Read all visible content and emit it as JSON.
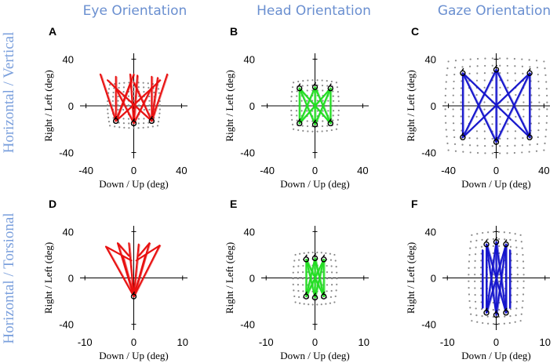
{
  "figure": {
    "column_titles": [
      "Eye Orientation",
      "Head Orientation",
      "Gaze Orientation"
    ],
    "row_titles": [
      "Horizontal / Vertical",
      "Horizontal / Torsional"
    ]
  },
  "colors": {
    "eye": "#e81010",
    "head": "#22dd22",
    "gaze": "#1515cc",
    "titles": "#7a9fdc",
    "grid_dots": "#8a8a8a"
  },
  "chart_data": [
    {
      "panel": "A",
      "type": "line",
      "title": "Eye Orientation",
      "row": "Horizontal / Vertical",
      "xlabel": "Down / Up (deg)",
      "ylabel": "Right / Left (deg)",
      "xlim": [
        -45,
        45
      ],
      "ylim": [
        -45,
        45
      ],
      "xticks": [
        -40,
        0,
        40
      ],
      "yticks": [
        40,
        0,
        -40
      ],
      "color": "eye",
      "grid": {
        "x": [
          -20,
          20
        ],
        "y": [
          -17,
          18
        ],
        "nx": 11,
        "ny": 11,
        "bulge": 3
      },
      "targets": [
        [
          -15,
          -13
        ],
        [
          0,
          -15
        ],
        [
          15,
          -13
        ]
      ],
      "traces": [
        {
          "from": [
            -15,
            -13
          ],
          "to": [
            -28,
            27
          ]
        },
        {
          "from": [
            -15,
            -13
          ],
          "to": [
            -15,
            25
          ]
        },
        {
          "from": [
            -15,
            -13
          ],
          "to": [
            0,
            27
          ]
        },
        {
          "from": [
            -15,
            -13
          ],
          "to": [
            15,
            15
          ]
        },
        {
          "from": [
            -15,
            -13
          ],
          "to": [
            -2,
            22
          ]
        },
        {
          "from": [
            0,
            -15
          ],
          "to": [
            -15,
            15
          ]
        },
        {
          "from": [
            0,
            -15
          ],
          "to": [
            15,
            16
          ]
        },
        {
          "from": [
            0,
            -15
          ],
          "to": [
            -3,
            27
          ]
        },
        {
          "from": [
            0,
            -15
          ],
          "to": [
            3,
            26
          ]
        },
        {
          "from": [
            15,
            -13
          ],
          "to": [
            28,
            27
          ]
        },
        {
          "from": [
            15,
            -13
          ],
          "to": [
            15,
            25
          ]
        },
        {
          "from": [
            15,
            -13
          ],
          "to": [
            0,
            20
          ]
        },
        {
          "from": [
            15,
            -13
          ],
          "to": [
            -15,
            15
          ]
        },
        {
          "from": [
            15,
            -13
          ],
          "to": [
            20,
            24
          ]
        },
        {
          "from": [
            -15,
            15
          ],
          "to": [
            -22,
            22
          ]
        },
        {
          "from": [
            15,
            15
          ],
          "to": [
            22,
            22
          ]
        }
      ]
    },
    {
      "panel": "B",
      "type": "line",
      "title": "Head Orientation",
      "row": "Horizontal / Vertical",
      "xlabel": "Down / Up (deg)",
      "ylabel": "Right / Left (deg)",
      "xlim": [
        -45,
        45
      ],
      "ylim": [
        -45,
        45
      ],
      "xticks": [
        -40,
        0,
        40
      ],
      "yticks": [
        40,
        0,
        -40
      ],
      "color": "head",
      "grid": {
        "x": [
          -18,
          18
        ],
        "y": [
          -20,
          20
        ],
        "nx": 10,
        "ny": 11,
        "bulge": 3
      },
      "targets": [
        [
          -13,
          -15
        ],
        [
          0,
          -16
        ],
        [
          13,
          -15
        ],
        [
          -13,
          15
        ],
        [
          0,
          16
        ],
        [
          13,
          15
        ]
      ],
      "traces": [
        {
          "from": [
            -13,
            -15
          ],
          "to": [
            -13,
            15
          ]
        },
        {
          "from": [
            -13,
            -15
          ],
          "to": [
            0,
            16
          ]
        },
        {
          "from": [
            -13,
            -15
          ],
          "to": [
            13,
            15
          ]
        },
        {
          "from": [
            0,
            -16
          ],
          "to": [
            -13,
            15
          ]
        },
        {
          "from": [
            0,
            -16
          ],
          "to": [
            0,
            16
          ]
        },
        {
          "from": [
            0,
            -16
          ],
          "to": [
            13,
            15
          ]
        },
        {
          "from": [
            13,
            -15
          ],
          "to": [
            -13,
            15
          ]
        },
        {
          "from": [
            13,
            -15
          ],
          "to": [
            0,
            16
          ]
        },
        {
          "from": [
            13,
            -15
          ],
          "to": [
            13,
            15
          ]
        }
      ]
    },
    {
      "panel": "C",
      "type": "line",
      "title": "Gaze Orientation",
      "row": "Horizontal / Vertical",
      "xlabel": "Down / Up (deg)",
      "ylabel": "Right / Left (deg)",
      "xlim": [
        -45,
        45
      ],
      "ylim": [
        -45,
        45
      ],
      "xticks": [
        -40,
        0,
        40
      ],
      "yticks": [
        40,
        0,
        -40
      ],
      "color": "gaze",
      "grid": {
        "x": [
          -40,
          40
        ],
        "y": [
          -38,
          38
        ],
        "nx": 14,
        "ny": 14,
        "bulge": 4
      },
      "targets": [
        [
          -28,
          -27
        ],
        [
          0,
          -31
        ],
        [
          28,
          -27
        ],
        [
          -28,
          28
        ],
        [
          0,
          31
        ],
        [
          28,
          28
        ]
      ],
      "traces": [
        {
          "from": [
            -28,
            -27
          ],
          "to": [
            -28,
            28
          ]
        },
        {
          "from": [
            -28,
            -27
          ],
          "to": [
            0,
            31
          ]
        },
        {
          "from": [
            -28,
            -27
          ],
          "to": [
            28,
            28
          ]
        },
        {
          "from": [
            0,
            -31
          ],
          "to": [
            -28,
            28
          ]
        },
        {
          "from": [
            0,
            -31
          ],
          "to": [
            0,
            31
          ]
        },
        {
          "from": [
            0,
            -31
          ],
          "to": [
            28,
            28
          ]
        },
        {
          "from": [
            28,
            -27
          ],
          "to": [
            -28,
            28
          ]
        },
        {
          "from": [
            28,
            -27
          ],
          "to": [
            0,
            31
          ]
        },
        {
          "from": [
            28,
            -27
          ],
          "to": [
            28,
            28
          ]
        }
      ]
    },
    {
      "panel": "D",
      "type": "line",
      "title": "Eye Orientation",
      "row": "Horizontal / Torsional",
      "xlabel": "Down / Up (deg)",
      "ylabel": "Right / Left (deg)",
      "xlim": [
        -11,
        11
      ],
      "ylim": [
        -45,
        45
      ],
      "xticks": [
        -10,
        0,
        10
      ],
      "yticks": [
        40,
        0,
        -40
      ],
      "color": "eye",
      "grid": null,
      "targets": [
        [
          0,
          -16
        ]
      ],
      "traces": [
        {
          "from": [
            0,
            -16
          ],
          "to": [
            -5.7,
            27
          ]
        },
        {
          "from": [
            0,
            -16
          ],
          "to": [
            -3.3,
            30
          ]
        },
        {
          "from": [
            0,
            -16
          ],
          "to": [
            -1,
            30
          ]
        },
        {
          "from": [
            0,
            -16
          ],
          "to": [
            1,
            29
          ]
        },
        {
          "from": [
            0,
            -16
          ],
          "to": [
            3.2,
            30
          ]
        },
        {
          "from": [
            0,
            -16
          ],
          "to": [
            5.3,
            28
          ]
        },
        {
          "from": [
            0,
            -16
          ],
          "to": [
            -2.2,
            18
          ]
        },
        {
          "from": [
            0,
            -16
          ],
          "to": [
            2.4,
            20
          ]
        },
        {
          "from": [
            -5.7,
            27
          ],
          "to": [
            -0.5,
            15
          ]
        },
        {
          "from": [
            5.3,
            28
          ],
          "to": [
            0.5,
            15
          ]
        },
        {
          "from": [
            -3.3,
            30
          ],
          "to": [
            -1,
            19
          ]
        },
        {
          "from": [
            3.2,
            30
          ],
          "to": [
            1,
            19
          ]
        }
      ]
    },
    {
      "panel": "E",
      "type": "line",
      "title": "Head Orientation",
      "row": "Horizontal / Torsional",
      "xlabel": "Down / Up (deg)",
      "ylabel": "Right / Left (deg)",
      "xlim": [
        -11,
        11
      ],
      "ylim": [
        -45,
        45
      ],
      "xticks": [
        -10,
        0,
        10
      ],
      "yticks": [
        40,
        0,
        -40
      ],
      "color": "head",
      "grid": {
        "x": [
          -4,
          4
        ],
        "y": [
          -21,
          20
        ],
        "nx": 10,
        "ny": 9,
        "bulge": 3
      },
      "targets": [
        [
          -1.8,
          -16
        ],
        [
          0,
          -17
        ],
        [
          1.8,
          -16
        ],
        [
          -1.8,
          16
        ],
        [
          0,
          17
        ],
        [
          1.8,
          16
        ]
      ],
      "traces": [
        {
          "from": [
            -1.8,
            -16
          ],
          "to": [
            -1.8,
            16
          ]
        },
        {
          "from": [
            -1.8,
            -16
          ],
          "to": [
            0,
            17
          ]
        },
        {
          "from": [
            -1.8,
            -16
          ],
          "to": [
            1.8,
            16
          ]
        },
        {
          "from": [
            0,
            -17
          ],
          "to": [
            -1.8,
            16
          ]
        },
        {
          "from": [
            0,
            -17
          ],
          "to": [
            0,
            17
          ]
        },
        {
          "from": [
            0,
            -17
          ],
          "to": [
            1.8,
            16
          ]
        },
        {
          "from": [
            1.8,
            -16
          ],
          "to": [
            -1.8,
            16
          ]
        },
        {
          "from": [
            1.8,
            -16
          ],
          "to": [
            0,
            17
          ]
        },
        {
          "from": [
            1.8,
            -16
          ],
          "to": [
            1.8,
            16
          ]
        }
      ]
    },
    {
      "panel": "F",
      "type": "line",
      "title": "Gaze Orientation",
      "row": "Horizontal / Torsional",
      "xlabel": "Down / Up (deg)",
      "ylabel": "Right / Left (deg)",
      "xlim": [
        -11,
        11
      ],
      "ylim": [
        -45,
        45
      ],
      "xticks": [
        -10,
        0,
        10
      ],
      "yticks": [
        40,
        0,
        -40
      ],
      "color": "gaze",
      "grid": {
        "x": [
          -5,
          5
        ],
        "y": [
          -37,
          37
        ],
        "nx": 10,
        "ny": 14,
        "bulge": 4
      },
      "targets": [
        [
          -2,
          -30
        ],
        [
          0,
          -32
        ],
        [
          2,
          -30
        ],
        [
          -2,
          29
        ],
        [
          0,
          31
        ],
        [
          2,
          29
        ]
      ],
      "traces": [
        {
          "from": [
            -2,
            -30
          ],
          "to": [
            -2,
            29
          ]
        },
        {
          "from": [
            -2,
            -30
          ],
          "to": [
            0,
            31
          ]
        },
        {
          "from": [
            -2,
            -30
          ],
          "to": [
            2,
            29
          ]
        },
        {
          "from": [
            0,
            -32
          ],
          "to": [
            -2,
            29
          ]
        },
        {
          "from": [
            0,
            -32
          ],
          "to": [
            0,
            31
          ]
        },
        {
          "from": [
            0,
            -32
          ],
          "to": [
            2,
            29
          ]
        },
        {
          "from": [
            2,
            -30
          ],
          "to": [
            -2,
            29
          ]
        },
        {
          "from": [
            2,
            -30
          ],
          "to": [
            0,
            31
          ]
        },
        {
          "from": [
            2,
            -30
          ],
          "to": [
            2,
            29
          ]
        },
        {
          "from": [
            -2.8,
            -26
          ],
          "to": [
            -2.8,
            24
          ]
        },
        {
          "from": [
            2.8,
            -26
          ],
          "to": [
            2.8,
            24
          ]
        }
      ]
    }
  ]
}
